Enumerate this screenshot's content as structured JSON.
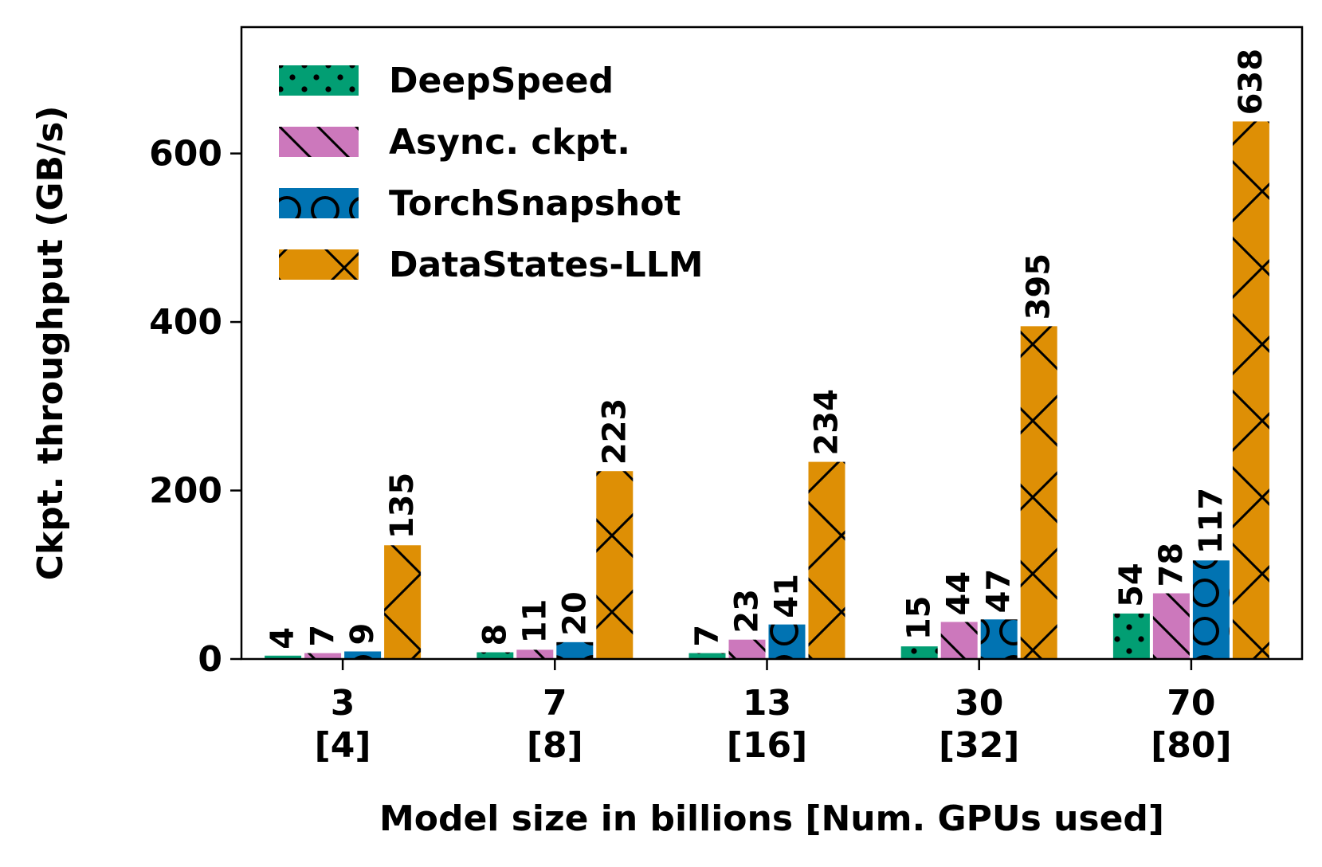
{
  "chart_data": {
    "type": "bar",
    "xlabel": "Model size in billions [Num. GPUs used]",
    "ylabel": "Ckpt. throughput (GB/s)",
    "ylim": [
      0,
      750
    ],
    "yticks": [
      0,
      200,
      400,
      600
    ],
    "categories": [
      {
        "line1": "3",
        "line2": "[4]"
      },
      {
        "line1": "7",
        "line2": "[8]"
      },
      {
        "line1": "13",
        "line2": "[16]"
      },
      {
        "line1": "30",
        "line2": "[32]"
      },
      {
        "line1": "70",
        "line2": "[80]"
      }
    ],
    "series": [
      {
        "name": "DeepSpeed",
        "color": "#029e73",
        "hatch": "dots",
        "values": [
          4,
          8,
          7,
          15,
          54
        ]
      },
      {
        "name": "Async. ckpt.",
        "color": "#cc78bc",
        "hatch": "backslash",
        "values": [
          7,
          11,
          23,
          44,
          78
        ]
      },
      {
        "name": "TorchSnapshot",
        "color": "#0173b2",
        "hatch": "circles",
        "values": [
          9,
          20,
          41,
          47,
          117
        ]
      },
      {
        "name": "DataStates-LLM",
        "color": "#de8f05",
        "hatch": "cross",
        "values": [
          135,
          223,
          234,
          395,
          638
        ]
      }
    ],
    "grid": false,
    "legend_position": "top-left",
    "data_labels": true
  }
}
